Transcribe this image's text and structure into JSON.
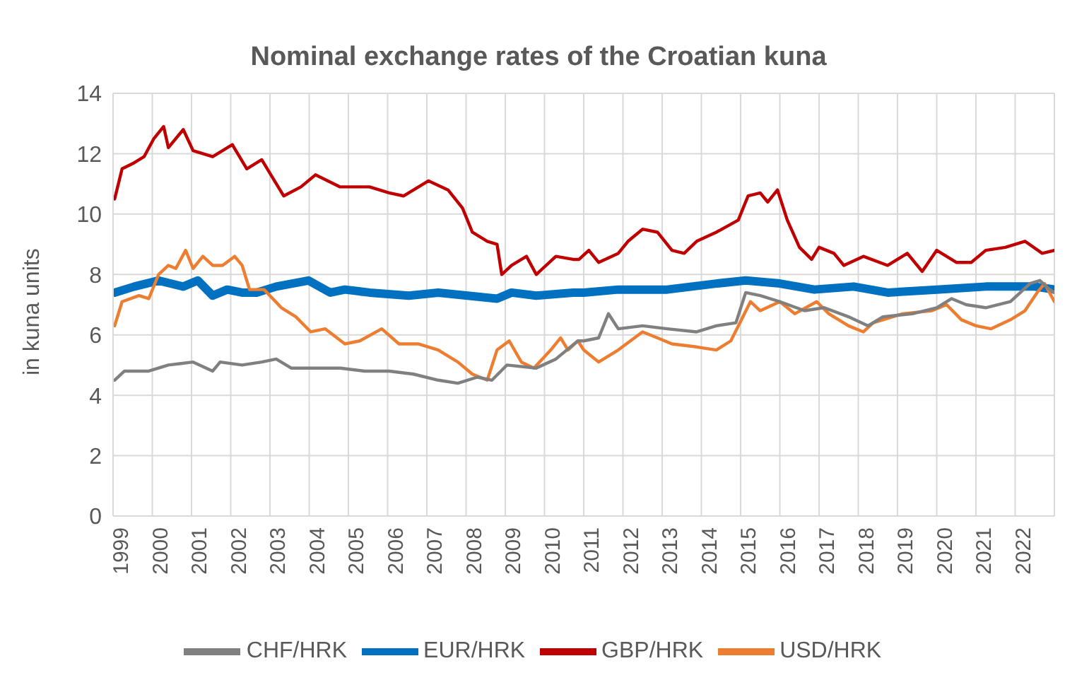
{
  "chart_data": {
    "type": "line",
    "title": "Nominal exchange rates of the Croatian kuna",
    "ylabel": "in kuna units",
    "xlim": [
      1999,
      2023
    ],
    "xticks": [
      1999,
      2000,
      2001,
      2002,
      2003,
      2004,
      2005,
      2006,
      2007,
      2008,
      2009,
      2010,
      2011,
      2012,
      2013,
      2014,
      2015,
      2016,
      2017,
      2018,
      2019,
      2020,
      2021,
      2022
    ],
    "ylim": [
      0,
      14
    ],
    "yticks": [
      0,
      2,
      4,
      6,
      8,
      10,
      12,
      14
    ],
    "grid": true,
    "legend": "bottom",
    "marker": "none",
    "line_style": "solid",
    "series": [
      {
        "name": "EUR/HRK",
        "color": "#0070c0",
        "x": [
          1999.04,
          1999.54,
          2000.16,
          2000.79,
          2001.16,
          2001.54,
          2001.91,
          2002.29,
          2002.66,
          2003.16,
          2003.98,
          2004.54,
          2004.91,
          2005.54,
          2006.54,
          2007.29,
          2008.04,
          2008.79,
          2009.16,
          2009.79,
          2010.73,
          2011,
          2011.88,
          2013.13,
          2014.38,
          2015.13,
          2016,
          2016.88,
          2017.88,
          2018.75,
          2020,
          2021.25,
          2022.5,
          2023
        ],
        "values": [
          7.4,
          7.6,
          7.8,
          7.6,
          7.8,
          7.3,
          7.5,
          7.4,
          7.4,
          7.6,
          7.8,
          7.4,
          7.5,
          7.4,
          7.3,
          7.4,
          7.3,
          7.2,
          7.4,
          7.3,
          7.4,
          7.4,
          7.5,
          7.5,
          7.7,
          7.8,
          7.7,
          7.5,
          7.6,
          7.4,
          7.5,
          7.6,
          7.6,
          7.5
        ]
      },
      {
        "name": "GBP/HRK",
        "color": "#c00000",
        "x": [
          1999.04,
          1999.23,
          1999.54,
          1999.79,
          2000.04,
          2000.29,
          2000.41,
          2000.79,
          2001.04,
          2001.54,
          2002.04,
          2002.41,
          2002.79,
          2003.35,
          2003.79,
          2004.16,
          2004.79,
          2005.54,
          2006.04,
          2006.41,
          2007.04,
          2007.54,
          2007.91,
          2008.16,
          2008.54,
          2008.79,
          2008.91,
          2009.16,
          2009.54,
          2009.79,
          2010.29,
          2010.73,
          2010.88,
          2011.13,
          2011.38,
          2011.88,
          2012.13,
          2012.5,
          2012.88,
          2013.25,
          2013.56,
          2013.88,
          2014.38,
          2014.94,
          2015.19,
          2015.5,
          2015.69,
          2015.94,
          2016.19,
          2016.5,
          2016.81,
          2017,
          2017.38,
          2017.63,
          2018.13,
          2018.75,
          2019.25,
          2019.63,
          2020,
          2020.5,
          2020.88,
          2021.25,
          2021.75,
          2022.25,
          2022.69,
          2023
        ],
        "values": [
          10.5,
          11.5,
          11.7,
          11.9,
          12.5,
          12.9,
          12.2,
          12.8,
          12.1,
          11.9,
          12.3,
          11.5,
          11.8,
          10.6,
          10.9,
          11.3,
          10.9,
          10.9,
          10.7,
          10.6,
          11.1,
          10.8,
          10.2,
          9.4,
          9.1,
          9,
          8,
          8.3,
          8.6,
          8,
          8.6,
          8.5,
          8.5,
          8.8,
          8.4,
          8.7,
          9.1,
          9.5,
          9.4,
          8.8,
          8.7,
          9.1,
          9.4,
          9.8,
          10.6,
          10.7,
          10.4,
          10.8,
          9.8,
          8.9,
          8.5,
          8.9,
          8.7,
          8.3,
          8.6,
          8.3,
          8.7,
          8.1,
          8.8,
          8.4,
          8.4,
          8.8,
          8.9,
          9.1,
          8.7,
          8.8
        ]
      },
      {
        "name": "USD/HRK",
        "color": "#ed7d31",
        "x": [
          1999.04,
          1999.23,
          1999.66,
          1999.91,
          2000.16,
          2000.41,
          2000.6,
          2000.85,
          2001.04,
          2001.29,
          2001.54,
          2001.79,
          2002.1,
          2002.29,
          2002.48,
          2002.85,
          2003.29,
          2003.66,
          2004.04,
          2004.41,
          2004.91,
          2005.29,
          2005.85,
          2006.29,
          2006.79,
          2007.29,
          2007.79,
          2008.16,
          2008.54,
          2008.79,
          2009.1,
          2009.41,
          2009.73,
          2010.16,
          2010.41,
          2010.6,
          2010.85,
          2011,
          2011.38,
          2011.88,
          2012.5,
          2012.88,
          2013.25,
          2013.88,
          2014.38,
          2014.75,
          2015.06,
          2015.25,
          2015.5,
          2016,
          2016.38,
          2016.94,
          2017.25,
          2017.75,
          2018.13,
          2018.38,
          2019.13,
          2019.88,
          2020.25,
          2020.63,
          2021,
          2021.38,
          2021.88,
          2022.25,
          2022.56,
          2022.75,
          2023
        ],
        "values": [
          6.3,
          7.1,
          7.3,
          7.2,
          8,
          8.3,
          8.2,
          8.8,
          8.2,
          8.6,
          8.3,
          8.3,
          8.6,
          8.3,
          7.5,
          7.5,
          6.9,
          6.6,
          6.1,
          6.2,
          5.7,
          5.8,
          6.2,
          5.7,
          5.7,
          5.5,
          5.1,
          4.7,
          4.5,
          5.5,
          5.8,
          5.1,
          4.9,
          5.5,
          5.9,
          5.5,
          5.8,
          5.5,
          5.1,
          5.5,
          6.1,
          5.9,
          5.7,
          5.6,
          5.5,
          5.8,
          6.6,
          7.1,
          6.8,
          7.1,
          6.7,
          7.1,
          6.7,
          6.3,
          6.1,
          6.4,
          6.7,
          6.8,
          7,
          6.5,
          6.3,
          6.2,
          6.5,
          6.8,
          7.4,
          7.7,
          7.1
        ]
      },
      {
        "name": "CHF/HRK",
        "color": "#808080",
        "x": [
          1999.04,
          1999.29,
          1999.91,
          2000.41,
          2001.04,
          2001.54,
          2001.73,
          2002.29,
          2002.79,
          2003.16,
          2003.54,
          2004.16,
          2004.79,
          2005.41,
          2006.04,
          2006.66,
          2007.29,
          2007.79,
          2008.29,
          2008.66,
          2009.04,
          2009.79,
          2010.29,
          2010.85,
          2011,
          2011.38,
          2011.63,
          2011.88,
          2012.5,
          2013.13,
          2013.88,
          2014.38,
          2014.88,
          2015.13,
          2015.5,
          2016,
          2016.63,
          2017.13,
          2017.75,
          2018.25,
          2018.63,
          2019.38,
          2020,
          2020.38,
          2020.75,
          2021.25,
          2021.88,
          2022.38,
          2022.63,
          2022.88,
          2023
        ],
        "values": [
          4.5,
          4.8,
          4.8,
          5,
          5.1,
          4.8,
          5.1,
          5,
          5.1,
          5.2,
          4.9,
          4.9,
          4.9,
          4.8,
          4.8,
          4.7,
          4.5,
          4.4,
          4.6,
          4.5,
          5,
          4.9,
          5.2,
          5.8,
          5.8,
          5.9,
          6.7,
          6.2,
          6.3,
          6.2,
          6.1,
          6.3,
          6.4,
          7.4,
          7.3,
          7.1,
          6.8,
          6.9,
          6.6,
          6.3,
          6.6,
          6.7,
          6.9,
          7.2,
          7,
          6.9,
          7.1,
          7.7,
          7.8,
          7.5,
          7.4
        ]
      }
    ]
  }
}
